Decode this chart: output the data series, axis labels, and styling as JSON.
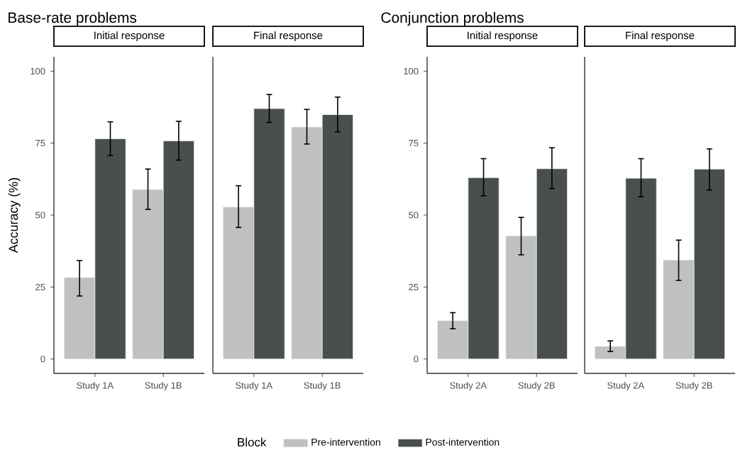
{
  "chart_data": [
    {
      "type": "bar",
      "title": "Base-rate problems",
      "subtitle": "Initial response",
      "ylabel": "Accuracy (%)",
      "categories": [
        "Study 1A",
        "Study 1B"
      ],
      "ylim": [
        -5,
        105
      ],
      "yticks": [
        0,
        25,
        50,
        75,
        100
      ],
      "legend": "bottom",
      "legend_title": "Block",
      "series": [
        {
          "name": "Pre-intervention",
          "color": "#c0c0c0",
          "values": [
            28.3,
            58.9
          ],
          "errors": [
            [
              21.9,
              34.2
            ],
            [
              52,
              66
            ]
          ]
        },
        {
          "name": "Post-intervention",
          "color": "#494e4e",
          "values": [
            76.5,
            75.8
          ],
          "errors": [
            [
              70.7,
              82.4
            ],
            [
              69.1,
              82.6
            ]
          ]
        }
      ]
    },
    {
      "type": "bar",
      "subtitle": "Final response",
      "categories": [
        "Study 1A",
        "Study 1B"
      ],
      "ylim": [
        -5,
        105
      ],
      "tick_labels": "x",
      "series": [
        {
          "color": "#c0c0c0",
          "values": [
            52.8,
            80.6
          ],
          "errors": [
            [
              45.7,
              60.2
            ],
            [
              74.7,
              86.7
            ]
          ]
        },
        {
          "color": "#494e4e",
          "values": [
            87,
            84.9
          ],
          "errors": [
            [
              82.2,
              91.9
            ],
            [
              78.9,
              91
            ]
          ]
        }
      ]
    },
    {
      "type": "bar",
      "title": "Conjunction problems",
      "subtitle": "Initial response",
      "categories": [
        "Study 2A",
        "Study 2B"
      ],
      "ylim": [
        -5,
        105
      ],
      "yticks": [
        0,
        25,
        50,
        75,
        100
      ],
      "series": [
        {
          "color": "#c0c0c0",
          "values": [
            13.3,
            42.8
          ],
          "errors": [
            [
              10.5,
              16.1
            ],
            [
              36.2,
              49.2
            ]
          ]
        },
        {
          "color": "#494e4e",
          "values": [
            63,
            66.1
          ],
          "errors": [
            [
              56.7,
              69.6
            ],
            [
              59.2,
              73.4
            ]
          ]
        }
      ]
    },
    {
      "type": "bar",
      "subtitle": "Final response",
      "categories": [
        "Study 2A",
        "Study 2B"
      ],
      "ylim": [
        -5,
        105
      ],
      "tick_labels": "x",
      "series": [
        {
          "color": "#c0c0c0",
          "values": [
            4.4,
            34.4
          ],
          "errors": [
            [
              2.6,
              6.3
            ],
            [
              27.3,
              41.3
            ]
          ]
        },
        {
          "color": "#494e4e",
          "values": [
            62.8,
            66
          ],
          "errors": [
            [
              56.4,
              69.6
            ],
            [
              58.7,
              73
            ]
          ]
        }
      ]
    }
  ]
}
